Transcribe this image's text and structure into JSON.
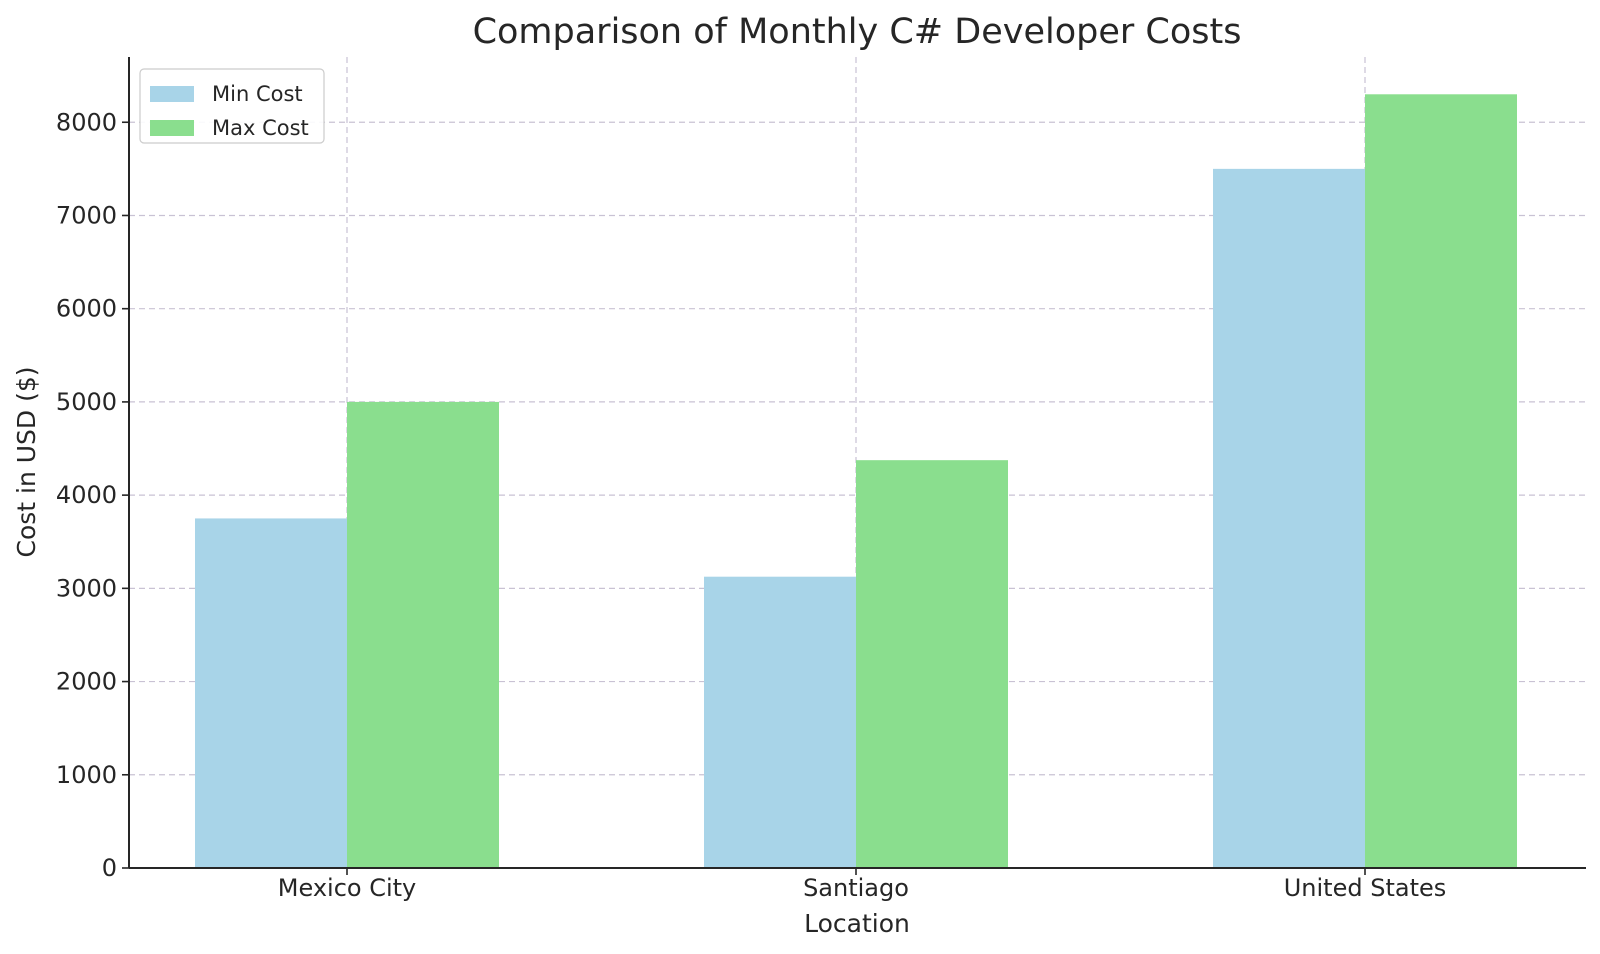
{
  "chart_data": {
    "type": "bar",
    "title": "Comparison of Monthly C# Developer Costs",
    "xlabel": "Location",
    "ylabel": "Cost in USD ($)",
    "categories": [
      "Mexico City",
      "Santiago",
      "United States"
    ],
    "series": [
      {
        "name": "Min Cost",
        "color": "#a8d4e8",
        "values": [
          3750,
          3125,
          7500
        ]
      },
      {
        "name": "Max Cost",
        "color": "#8ade8e",
        "values": [
          5000,
          4375,
          8300
        ]
      }
    ],
    "ylim": [
      0,
      8700
    ],
    "yticks": [
      0,
      1000,
      2000,
      3000,
      4000,
      5000,
      6000,
      7000,
      8000
    ],
    "grid": true,
    "legend": "top-left"
  }
}
